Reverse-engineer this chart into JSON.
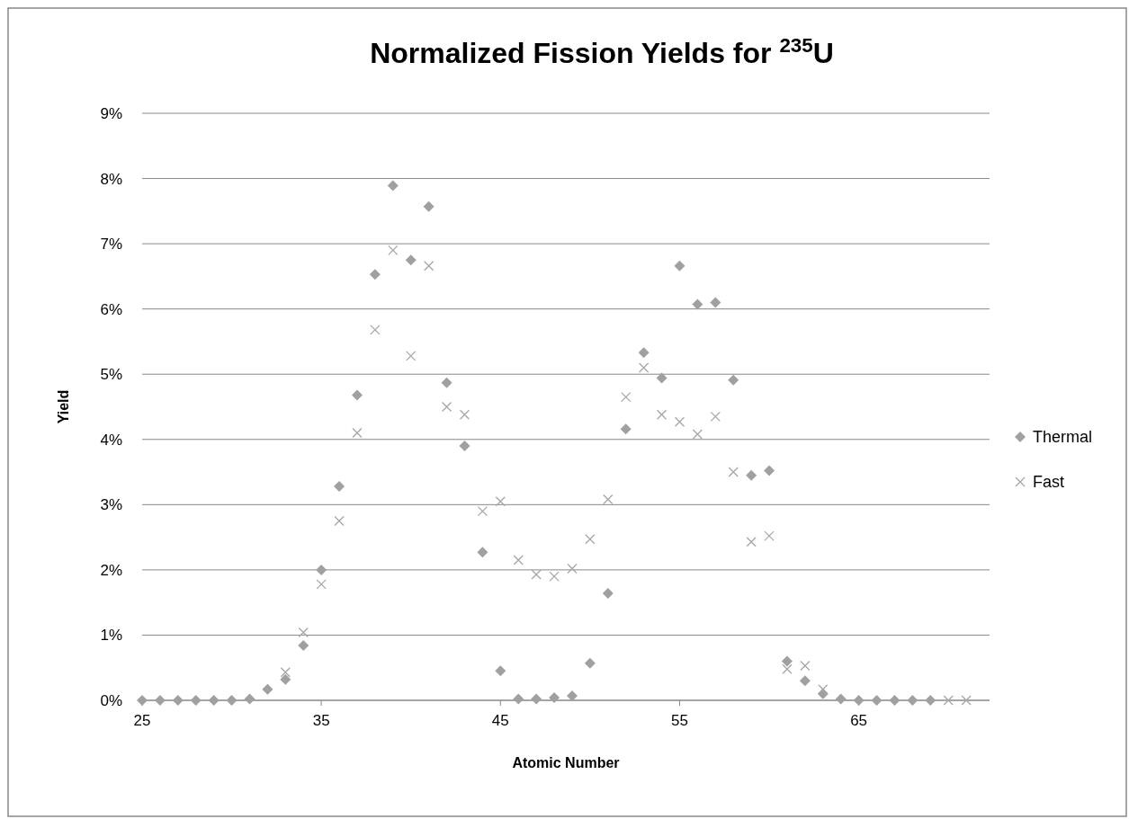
{
  "chart_data": {
    "type": "scatter",
    "title": "Normalized Fission Yields for $^{235}$U",
    "xlabel": "Atomic Number",
    "ylabel": "Yield",
    "x": [
      25,
      26,
      27,
      28,
      29,
      30,
      31,
      32,
      33,
      34,
      35,
      36,
      37,
      38,
      39,
      40,
      41,
      42,
      43,
      44,
      45,
      46,
      47,
      48,
      49,
      50,
      51,
      52,
      53,
      54,
      55,
      56,
      57,
      58,
      59,
      60,
      61,
      62,
      63,
      64,
      65,
      66,
      67,
      68,
      69,
      70,
      71
    ],
    "series": [
      {
        "name": "Thermal",
        "color": "#a0a0a0",
        "marker": "diamond",
        "values": [
          0,
          0,
          0,
          0,
          0,
          0,
          0.02,
          0.17,
          0.32,
          0.84,
          2.0,
          3.28,
          4.68,
          6.53,
          7.89,
          6.75,
          7.57,
          4.87,
          3.9,
          2.27,
          0.45,
          0.02,
          0.02,
          0.04,
          0.07,
          0.57,
          1.64,
          4.16,
          5.33,
          4.94,
          6.66,
          6.07,
          6.1,
          4.91,
          3.45,
          3.52,
          0.6,
          0.3,
          0.1,
          0.02,
          0,
          0,
          0,
          0,
          0,
          null,
          null
        ]
      },
      {
        "name": "Fast",
        "color": "#a6a6a6",
        "marker": "cross",
        "values": [
          null,
          null,
          null,
          null,
          null,
          null,
          null,
          null,
          0.43,
          1.04,
          1.78,
          2.75,
          4.1,
          5.68,
          6.9,
          5.28,
          6.66,
          4.5,
          4.38,
          2.9,
          3.05,
          2.15,
          1.93,
          1.9,
          2.02,
          2.47,
          3.08,
          4.65,
          5.1,
          4.38,
          4.27,
          4.08,
          4.35,
          3.5,
          2.43,
          2.52,
          0.48,
          0.53,
          0.17,
          null,
          null,
          null,
          null,
          null,
          null,
          0,
          0
        ]
      }
    ],
    "xlim": [
      25,
      72.3
    ],
    "xticks": [
      25,
      35,
      45,
      55,
      65
    ],
    "ylim": [
      0,
      9
    ],
    "yticks": [
      {
        "value": 0,
        "label": "0%"
      },
      {
        "value": 1,
        "label": "1%"
      },
      {
        "value": 2,
        "label": "2%"
      },
      {
        "value": 3,
        "label": "3%"
      },
      {
        "value": 4,
        "label": "4%"
      },
      {
        "value": 5,
        "label": "5%"
      },
      {
        "value": 6,
        "label": "6%"
      },
      {
        "value": 7,
        "label": "7%"
      },
      {
        "value": 8,
        "label": "8%"
      },
      {
        "value": 9,
        "label": "9%"
      }
    ],
    "grid": "y",
    "legend": "right"
  }
}
